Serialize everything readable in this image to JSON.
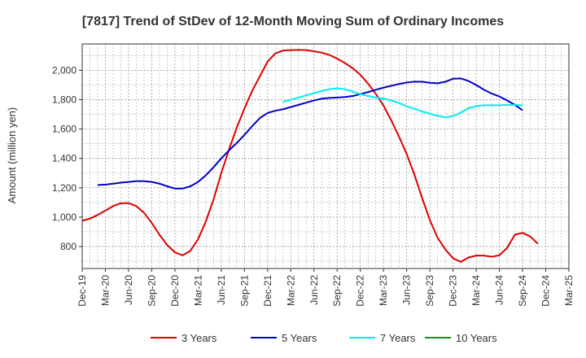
{
  "chart_data": {
    "type": "line",
    "title": "[7817]  Trend of StDev of 12-Month Moving Sum of Ordinary Incomes",
    "xlabel": "",
    "ylabel": "Amount (million yen)",
    "ylim": [
      650,
      2180
    ],
    "yticks": [
      800,
      1000,
      1200,
      1400,
      1600,
      1800,
      2000
    ],
    "ytick_labels": [
      "800",
      "1,000",
      "1,200",
      "1,400",
      "1,600",
      "1,800",
      "2,000"
    ],
    "x_start": "Dec-19",
    "x_tick_labels": [
      "Dec-19",
      "Mar-20",
      "Jun-20",
      "Sep-20",
      "Dec-20",
      "Mar-21",
      "Jun-21",
      "Sep-21",
      "Dec-21",
      "Mar-22",
      "Jun-22",
      "Sep-22",
      "Dec-22",
      "Mar-23",
      "Jun-23",
      "Sep-23",
      "Dec-23",
      "Mar-24",
      "Jun-24",
      "Sep-24",
      "Dec-24",
      "Mar-25"
    ],
    "grid": true,
    "legend_position": "bottom",
    "series": [
      {
        "name": "3 Years",
        "color": "#dd0000",
        "start_month": 0,
        "values": [
          975,
          990,
          1015,
          1045,
          1075,
          1095,
          1095,
          1075,
          1030,
          960,
          880,
          810,
          760,
          740,
          770,
          850,
          970,
          1120,
          1300,
          1460,
          1610,
          1740,
          1860,
          1960,
          2060,
          2115,
          2135,
          2138,
          2140,
          2138,
          2130,
          2120,
          2105,
          2080,
          2050,
          2015,
          1970,
          1910,
          1840,
          1760,
          1660,
          1550,
          1430,
          1290,
          1130,
          980,
          860,
          780,
          720,
          695,
          725,
          738,
          738,
          730,
          740,
          790,
          880,
          893,
          868,
          818
        ]
      },
      {
        "name": "5 Years",
        "color": "#0000cc",
        "start_month": 2,
        "values": [
          1218,
          1222,
          1228,
          1235,
          1240,
          1245,
          1245,
          1240,
          1228,
          1210,
          1195,
          1195,
          1210,
          1240,
          1285,
          1340,
          1400,
          1455,
          1505,
          1560,
          1620,
          1675,
          1710,
          1725,
          1735,
          1750,
          1765,
          1780,
          1795,
          1807,
          1812,
          1815,
          1818,
          1825,
          1838,
          1852,
          1868,
          1882,
          1895,
          1907,
          1917,
          1923,
          1922,
          1915,
          1912,
          1922,
          1943,
          1945,
          1928,
          1900,
          1868,
          1842,
          1822,
          1795,
          1765,
          1728
        ]
      },
      {
        "name": "7 Years",
        "color": "#00eeee",
        "start_month": 26,
        "values": [
          1785,
          1800,
          1815,
          1830,
          1845,
          1860,
          1872,
          1878,
          1872,
          1855,
          1838,
          1825,
          1815,
          1808,
          1795,
          1778,
          1755,
          1738,
          1720,
          1705,
          1690,
          1680,
          1688,
          1712,
          1742,
          1757,
          1762,
          1762,
          1762,
          1765,
          1765,
          1762
        ]
      },
      {
        "name": "10 Years",
        "color": "#228822",
        "start_month": 0,
        "values": []
      }
    ]
  }
}
